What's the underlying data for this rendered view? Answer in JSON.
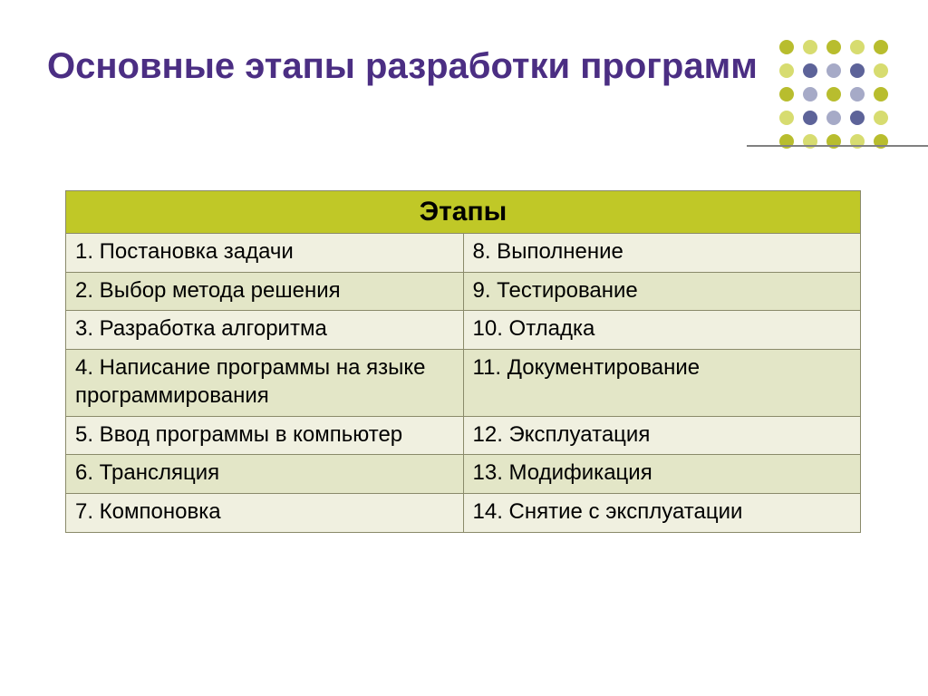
{
  "title": "Основные этапы разработки программ",
  "colors": {
    "title": "#4b2e83",
    "table_header_bg": "#c0c827",
    "row_odd_bg": "#f0f0e0",
    "row_even_bg": "#e3e6c7",
    "border": "#8a8a6a",
    "dot_palette": [
      "#b8bd2e",
      "#d7dc70",
      "#5d6399",
      "#a6aac7"
    ]
  },
  "table": {
    "type": "table",
    "header": "Этапы",
    "columns": [
      "left",
      "right"
    ],
    "rows": [
      [
        "1. Постановка задачи",
        "8. Выполнение"
      ],
      [
        "2. Выбор метода решения",
        "9. Тестирование"
      ],
      [
        "3. Разработка алгоритма",
        "10. Отладка"
      ],
      [
        "4. Написание программы на языке программирования",
        "11. Документирование"
      ],
      [
        "5. Ввод программы в компьютер",
        "12. Эксплуатация"
      ],
      [
        "6. Трансляция",
        "13. Модификация"
      ],
      [
        "7. Компоновка",
        "14. Снятие с эксплуатации"
      ]
    ],
    "row_zebra": [
      "odd",
      "even",
      "odd",
      "even",
      "odd",
      "even",
      "odd"
    ],
    "header_fontsize": 30,
    "cell_fontsize": 24,
    "col_widths_pct": [
      50,
      50
    ]
  },
  "decoration": {
    "type": "dot-grid",
    "grid": "5x5",
    "dot_radius": 8,
    "spacing": 26,
    "color_map": [
      [
        0,
        1,
        0,
        1,
        0
      ],
      [
        1,
        2,
        3,
        2,
        1
      ],
      [
        0,
        3,
        0,
        3,
        0
      ],
      [
        1,
        2,
        3,
        2,
        1
      ],
      [
        0,
        1,
        0,
        1,
        0
      ]
    ]
  }
}
